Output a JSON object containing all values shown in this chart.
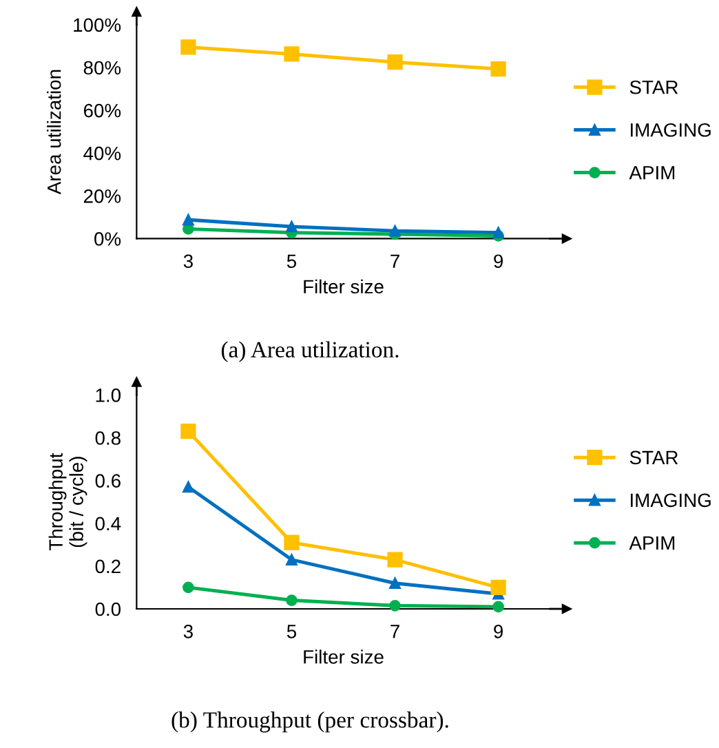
{
  "chart_data": [
    {
      "type": "line",
      "ylabel": "Area utilization",
      "xlabel": "Filter size",
      "annotations": [
        "(a) Area utilization."
      ],
      "categories": [
        "3",
        "5",
        "7",
        "9"
      ],
      "ylim": [
        0,
        100
      ],
      "yticks": [
        {
          "value": 0,
          "label": "0%"
        },
        {
          "value": 20,
          "label": "20%"
        },
        {
          "value": 40,
          "label": "40%"
        },
        {
          "value": 60,
          "label": "60%"
        },
        {
          "value": 80,
          "label": "80%"
        },
        {
          "value": 100,
          "label": "100%"
        }
      ],
      "grid": false,
      "legend": "right",
      "line_style": "solid",
      "series": [
        {
          "name": "STAR",
          "color": "#ffc000",
          "marker": "square",
          "values": [
            89.5,
            86.3,
            82.5,
            79.3
          ]
        },
        {
          "name": "IMAGING",
          "color": "#0070c0",
          "marker": "triangle",
          "values": [
            8.8,
            5.6,
            3.6,
            2.8
          ]
        },
        {
          "name": "APIM",
          "color": "#00b050",
          "marker": "circle",
          "values": [
            4.5,
            2.8,
            2.1,
            1.3
          ]
        }
      ]
    },
    {
      "type": "line",
      "ylabel": "Throughput\n(bit / cycle)",
      "xlabel": "Filter size",
      "annotations": [
        "(b) Throughput (per crossbar)."
      ],
      "categories": [
        "3",
        "5",
        "7",
        "9"
      ],
      "ylim": [
        0,
        1.0
      ],
      "yticks": [
        {
          "value": 0,
          "label": "0.0"
        },
        {
          "value": 0.2,
          "label": "0.2"
        },
        {
          "value": 0.4,
          "label": "0.4"
        },
        {
          "value": 0.6,
          "label": "0.6"
        },
        {
          "value": 0.8,
          "label": "0.8"
        },
        {
          "value": 1.0,
          "label": "1.0"
        }
      ],
      "grid": false,
      "legend": "right",
      "line_style": "solid",
      "series": [
        {
          "name": "STAR",
          "color": "#ffc000",
          "marker": "square",
          "values": [
            0.83,
            0.31,
            0.23,
            0.1
          ]
        },
        {
          "name": "IMAGING",
          "color": "#0070c0",
          "marker": "triangle",
          "values": [
            0.57,
            0.23,
            0.12,
            0.07
          ]
        },
        {
          "name": "APIM",
          "color": "#00b050",
          "marker": "circle",
          "values": [
            0.1,
            0.04,
            0.015,
            0.01
          ]
        }
      ]
    }
  ]
}
